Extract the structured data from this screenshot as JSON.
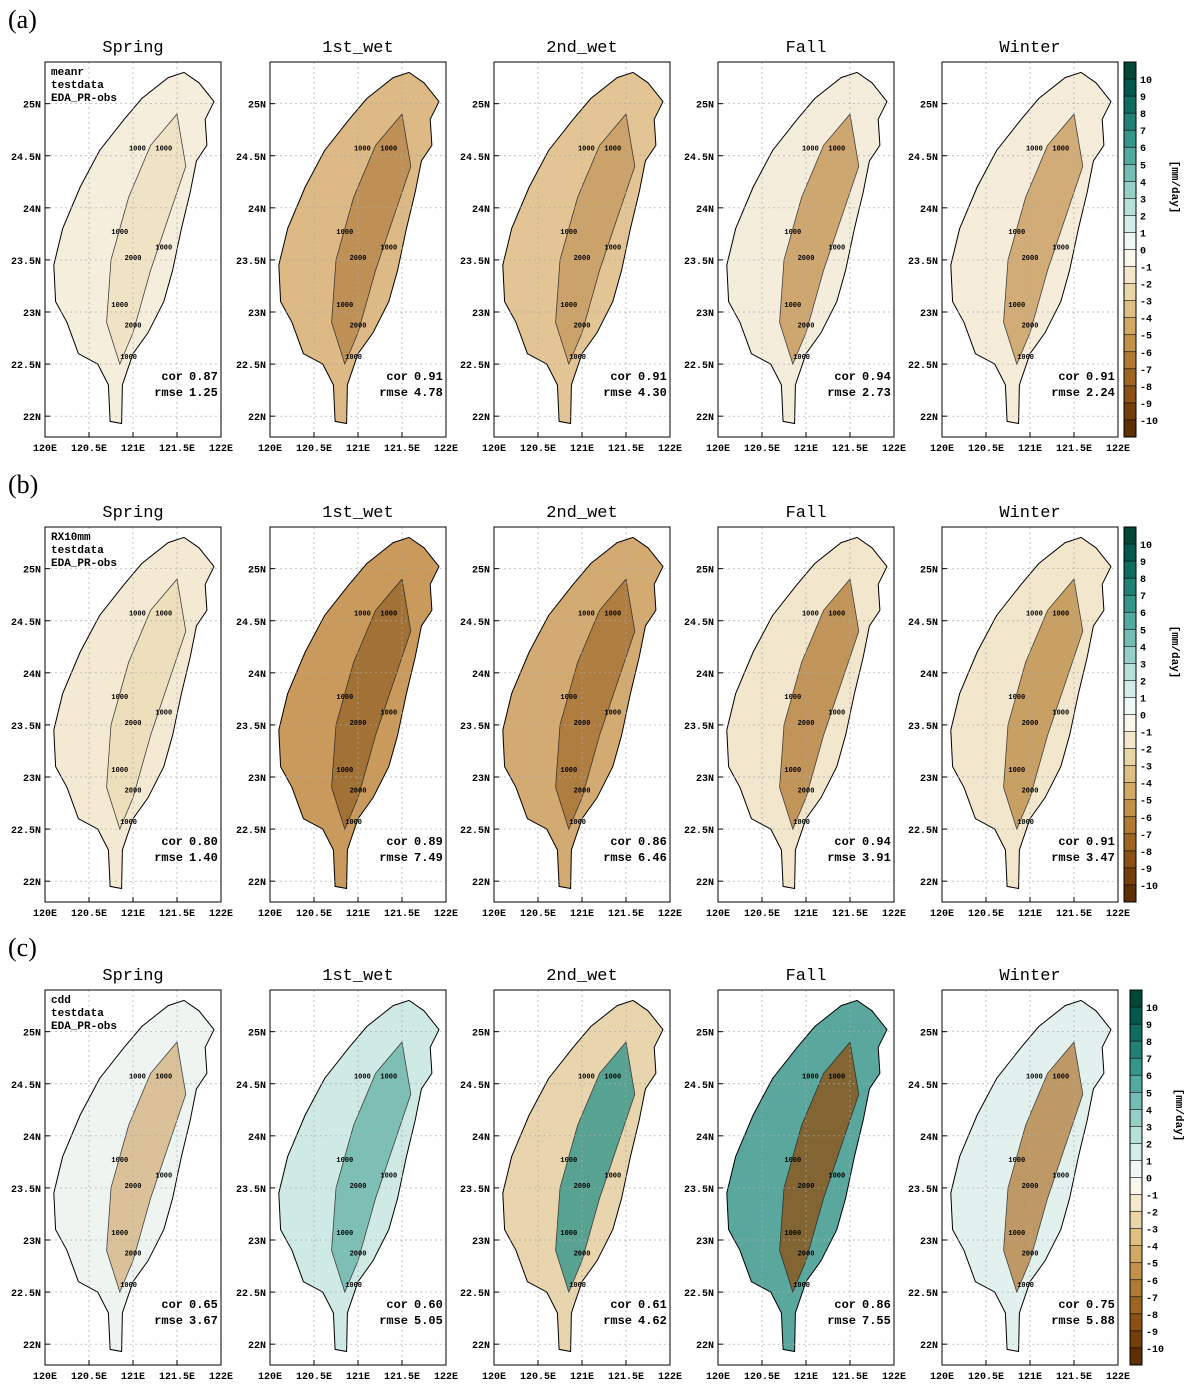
{
  "figure": {
    "rows": [
      {
        "label": "(a)",
        "info": [
          "meanr",
          "testdata",
          "EDA_PR-obs"
        ],
        "panels": [
          {
            "title": "Spring",
            "cor": "0.87",
            "rmse": "1.25"
          },
          {
            "title": "1st_wet",
            "cor": "0.91",
            "rmse": "4.78"
          },
          {
            "title": "2nd_wet",
            "cor": "0.91",
            "rmse": "4.30"
          },
          {
            "title": "Fall",
            "cor": "0.94",
            "rmse": "2.73"
          },
          {
            "title": "Winter",
            "cor": "0.91",
            "rmse": "2.24"
          }
        ]
      },
      {
        "label": "(b)",
        "info": [
          "RX10mm",
          "testdata",
          "EDA_PR-obs"
        ],
        "panels": [
          {
            "title": "Spring",
            "cor": "0.80",
            "rmse": "1.40"
          },
          {
            "title": "1st_wet",
            "cor": "0.89",
            "rmse": "7.49"
          },
          {
            "title": "2nd_wet",
            "cor": "0.86",
            "rmse": "6.46"
          },
          {
            "title": "Fall",
            "cor": "0.94",
            "rmse": "3.91"
          },
          {
            "title": "Winter",
            "cor": "0.91",
            "rmse": "3.47"
          }
        ]
      },
      {
        "label": "(c)",
        "info": [
          "cdd",
          "testdata",
          "EDA_PR-obs"
        ],
        "panels": [
          {
            "title": "Spring",
            "cor": "0.65",
            "rmse": "3.67"
          },
          {
            "title": "1st_wet",
            "cor": "0.60",
            "rmse": "5.05"
          },
          {
            "title": "2nd_wet",
            "cor": "0.61",
            "rmse": "4.62"
          },
          {
            "title": "Fall",
            "cor": "0.86",
            "rmse": "7.55"
          },
          {
            "title": "Winter",
            "cor": "0.75",
            "rmse": "5.88"
          }
        ]
      }
    ],
    "stat_labels": {
      "cor": "cor",
      "rmse": "rmse"
    },
    "contour_labels": [
      "1000",
      "2000"
    ],
    "xlim": [
      120,
      122
    ],
    "ylim": [
      21.8,
      25.4
    ],
    "xticks": [
      {
        "value": 120,
        "label": "120E"
      },
      {
        "value": 120.5,
        "label": "120.5E"
      },
      {
        "value": 121,
        "label": "121E"
      },
      {
        "value": 121.5,
        "label": "121.5E"
      },
      {
        "value": 122,
        "label": "122E"
      }
    ],
    "yticks": [
      {
        "value": 22,
        "label": "22N"
      },
      {
        "value": 22.5,
        "label": "22.5N"
      },
      {
        "value": 23,
        "label": "23N"
      },
      {
        "value": 23.5,
        "label": "23.5N"
      },
      {
        "value": 24,
        "label": "24N"
      },
      {
        "value": 24.5,
        "label": "24.5N"
      },
      {
        "value": 25,
        "label": "25N"
      }
    ],
    "grid": true,
    "colorbar": {
      "label": "[mm/day]",
      "ticks": [
        10,
        9,
        8,
        7,
        6,
        5,
        4,
        3,
        2,
        1,
        0,
        -1,
        -2,
        -3,
        -4,
        -5,
        -6,
        -7,
        -8,
        -9,
        -10
      ],
      "colors": [
        "#00473a",
        "#01594c",
        "#0f6d60",
        "#1f8275",
        "#35968a",
        "#53aa9f",
        "#74bdb3",
        "#96cfc7",
        "#b7e0da",
        "#d4edea",
        "#eef8f6",
        "#fbf6ea",
        "#f3e8cb",
        "#ead5a6",
        "#dfc083",
        "#d1a964",
        "#c2924a",
        "#b17a34",
        "#9e6422",
        "#8a5014",
        "#743e09",
        "#5e2f03"
      ]
    }
  }
}
